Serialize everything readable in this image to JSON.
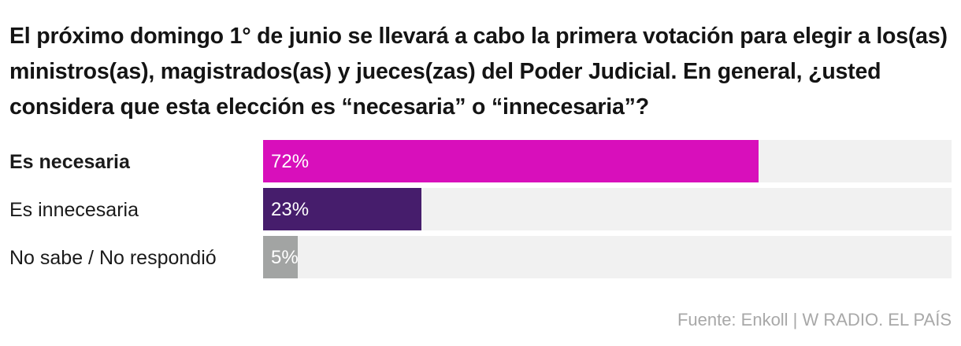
{
  "title": "El próximo domingo 1° de junio se llevará a cabo la primera votación para elegir a los(as) ministros(as), magistrados(as) y jueces(zas) del Poder Judicial. En general, ¿usted considera que esta elección es “necesaria” o “innecesaria”?",
  "source": "Fuente: Enkoll | W RADIO. EL PAÍS",
  "chart_data": {
    "type": "bar",
    "orientation": "horizontal",
    "title": "El próximo domingo 1° de junio se llevará a cabo la primera votación para elegir a los(as) ministros(as), magistrados(as) y jueces(zas) del Poder Judicial. En general, ¿usted considera que esta elección es “necesaria” o “innecesaria”?",
    "categories": [
      "Es necesaria",
      "Es innecesaria",
      "No sabe / No respondió"
    ],
    "values": [
      72,
      23,
      5
    ],
    "value_labels": [
      "72%",
      "23%",
      "5%"
    ],
    "colors": [
      "#d80fbb",
      "#461d6c",
      "#a2a4a3"
    ],
    "track_color": "#f1f1f1",
    "xlim": [
      0,
      100
    ],
    "grid": false,
    "legend": "none"
  }
}
